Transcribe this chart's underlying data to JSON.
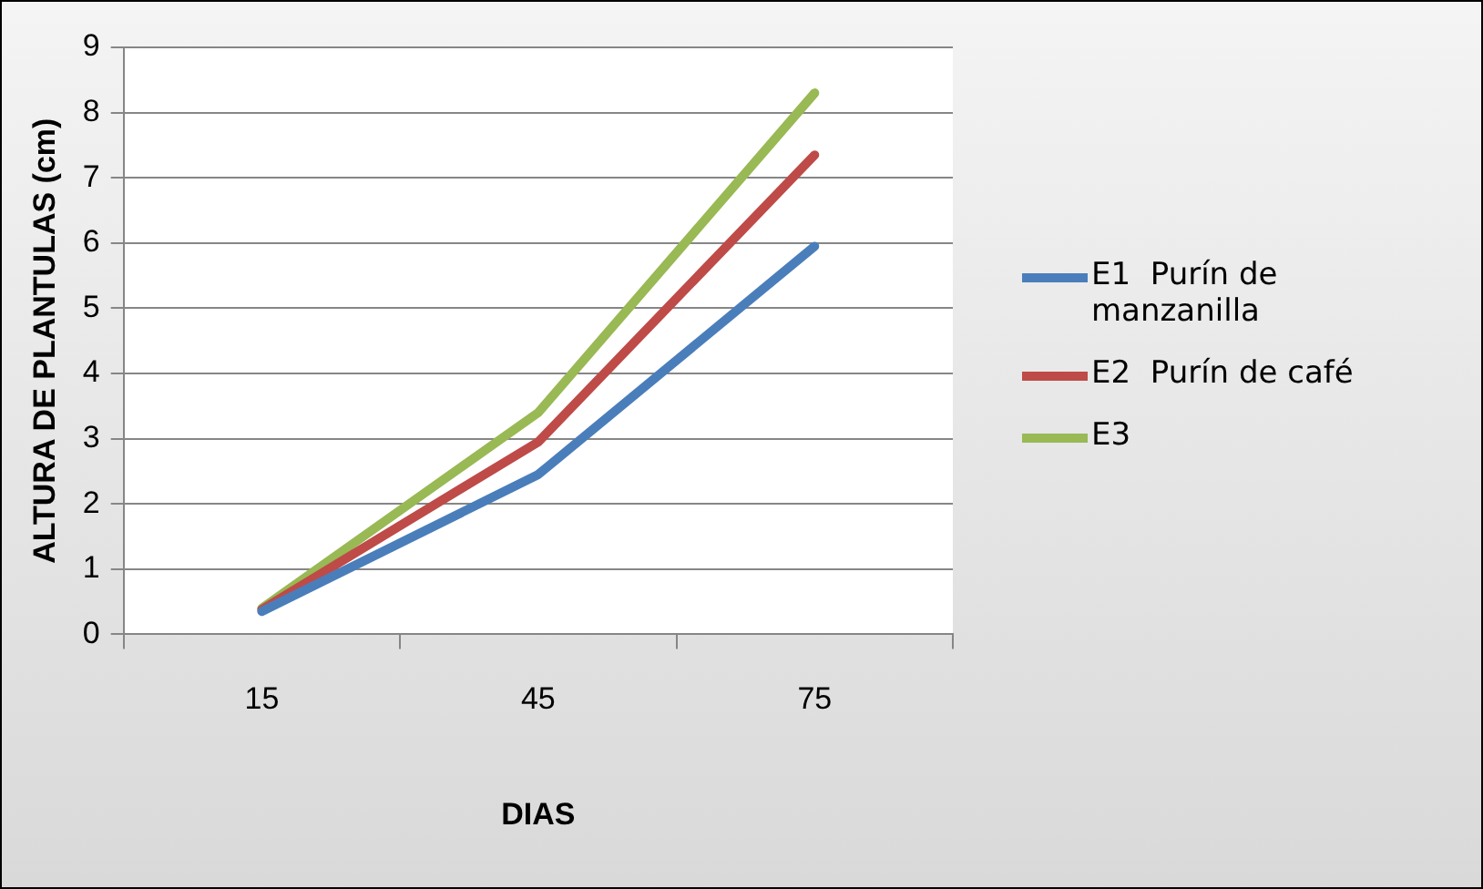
{
  "chart_data": {
    "type": "line",
    "xlabel": "DIAS",
    "ylabel": "ALTURA DE PLANTULAS (cm)",
    "categories": [
      "15",
      "45",
      "75"
    ],
    "series": [
      {
        "name": "E1  Purín de manzanilla",
        "color": "#4a7ebb",
        "values": [
          0.35,
          2.45,
          5.95
        ]
      },
      {
        "name": "E2  Purín de café",
        "color": "#be4b48",
        "values": [
          0.38,
          2.95,
          7.35
        ]
      },
      {
        "name": "E3",
        "color": "#98b954",
        "values": [
          0.4,
          3.4,
          8.3
        ]
      }
    ],
    "ylim": [
      0,
      9
    ],
    "yticks": [
      0,
      1,
      2,
      3,
      4,
      5,
      6,
      7,
      8,
      9
    ],
    "grid": "y",
    "legend": "right",
    "marker": "none",
    "line_style": "solid"
  }
}
